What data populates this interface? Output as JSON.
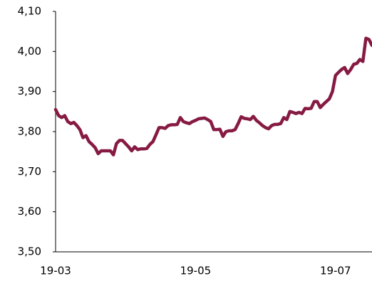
{
  "chart_data": {
    "type": "line",
    "categories": [
      "19-03",
      null,
      null,
      null,
      null,
      null,
      null,
      null,
      null,
      null,
      null,
      null,
      null,
      null,
      null,
      null,
      null,
      null,
      null,
      null,
      null,
      null,
      null,
      null,
      null,
      null,
      null,
      null,
      null,
      null,
      null,
      null,
      null,
      null,
      null,
      null,
      null,
      null,
      null,
      null,
      null,
      null,
      null,
      null,
      null,
      null,
      "19-05",
      null,
      null,
      null,
      null,
      null,
      null,
      null,
      null,
      null,
      null,
      null,
      null,
      null,
      null,
      null,
      null,
      null,
      null,
      null,
      null,
      null,
      null,
      null,
      null,
      null,
      null,
      null,
      null,
      null,
      null,
      null,
      null,
      null,
      null,
      null,
      null,
      null,
      null,
      null,
      null,
      null,
      null,
      null,
      null,
      null,
      "19-07",
      null,
      null,
      null,
      null,
      null,
      null,
      null,
      null,
      null,
      null,
      null,
      null
    ],
    "series": [
      {
        "color": "#861a43",
        "values": [
          3.855,
          3.84,
          3.835,
          3.84,
          3.825,
          3.82,
          3.823,
          3.815,
          3.805,
          3.785,
          3.79,
          3.775,
          3.768,
          3.76,
          3.745,
          3.752,
          3.752,
          3.752,
          3.752,
          3.742,
          3.77,
          3.778,
          3.778,
          3.77,
          3.762,
          3.752,
          3.762,
          3.755,
          3.757,
          3.757,
          3.758,
          3.768,
          3.775,
          3.792,
          3.81,
          3.81,
          3.808,
          3.815,
          3.817,
          3.817,
          3.818,
          3.835,
          3.825,
          3.822,
          3.82,
          3.825,
          3.828,
          3.832,
          3.833,
          3.834,
          3.83,
          3.825,
          3.805,
          3.805,
          3.806,
          3.788,
          3.8,
          3.802,
          3.802,
          3.805,
          3.82,
          3.837,
          3.833,
          3.832,
          3.83,
          3.838,
          3.828,
          3.822,
          3.815,
          3.81,
          3.807,
          3.815,
          3.818,
          3.818,
          3.82,
          3.835,
          3.83,
          3.85,
          3.848,
          3.845,
          3.848,
          3.845,
          3.858,
          3.857,
          3.858,
          3.875,
          3.875,
          3.86,
          3.868,
          3.875,
          3.882,
          3.9,
          3.94,
          3.948,
          3.955,
          3.96,
          3.945,
          3.955,
          3.968,
          3.97,
          3.98,
          3.975,
          4.033,
          4.03,
          4.015
        ]
      }
    ],
    "ylim": [
      3.5,
      4.1
    ],
    "yticks": [
      {
        "value": 3.5,
        "label": "3,50"
      },
      {
        "value": 3.6,
        "label": "3,60"
      },
      {
        "value": 3.7,
        "label": "3,70"
      },
      {
        "value": 3.8,
        "label": "3,80"
      },
      {
        "value": 3.9,
        "label": "3,90"
      },
      {
        "value": 4.0,
        "label": "4,00"
      },
      {
        "value": 4.1,
        "label": "4,10"
      }
    ]
  }
}
